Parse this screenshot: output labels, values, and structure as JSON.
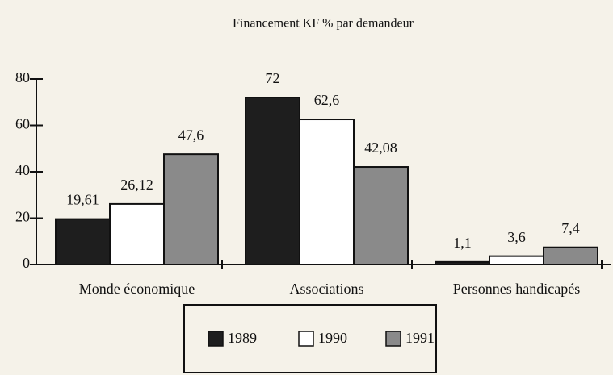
{
  "chart_data": {
    "type": "bar",
    "title": "Financement KF % par demandeur",
    "categories": [
      "Monde économique",
      "Associations",
      "Personnes handicapés"
    ],
    "series": [
      {
        "name": "1989",
        "color": "#1e1e1e",
        "values": [
          19.61,
          72,
          1.1
        ],
        "value_labels": [
          "19,61",
          "72",
          "1,1"
        ]
      },
      {
        "name": "1990",
        "color": "#ffffff",
        "values": [
          26.12,
          62.6,
          3.6
        ],
        "value_labels": [
          "26,12",
          "62,6",
          "3,6"
        ]
      },
      {
        "name": "1991",
        "color": "#8a8a8a",
        "values": [
          47.6,
          42.08,
          7.4
        ],
        "value_labels": [
          "47,6",
          "42,08",
          "7,4"
        ]
      }
    ],
    "ylim": [
      0,
      80
    ],
    "yticks": [
      0,
      20,
      40,
      60,
      80
    ],
    "grid": false
  }
}
